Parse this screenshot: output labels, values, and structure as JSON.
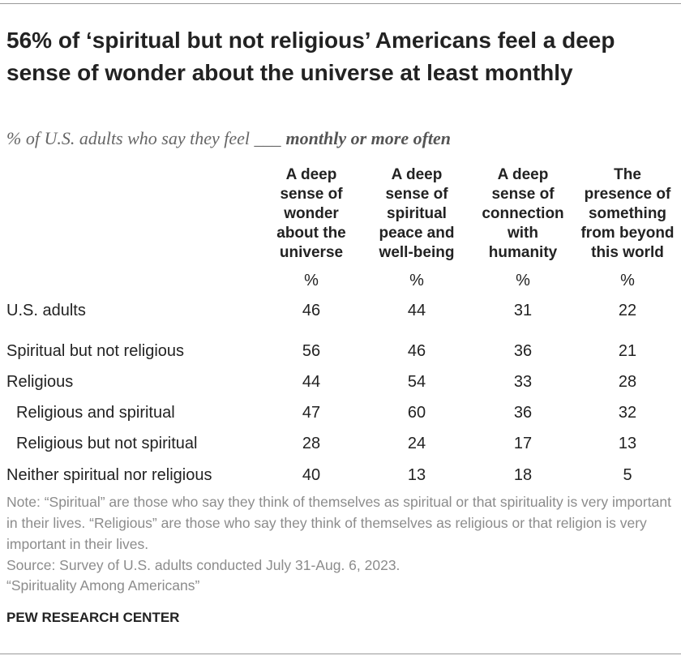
{
  "title": "56% of ‘spiritual but not religious’ Americans feel a deep sense of wonder about the universe at least monthly",
  "subtitle": {
    "lead": "% of U.S. adults who say they feel ___",
    "emphasis": "monthly or more often"
  },
  "table": {
    "columns": [
      [
        "A deep",
        "sense of",
        "wonder",
        "about the",
        "universe"
      ],
      [
        "A deep",
        "sense of",
        "spiritual",
        "peace and",
        "well-being"
      ],
      [
        "A deep",
        "sense of",
        "connection",
        "with",
        "humanity"
      ],
      [
        "The",
        "presence of",
        "something",
        "from beyond",
        "this world"
      ]
    ],
    "units": [
      "%",
      "%",
      "%",
      "%"
    ],
    "rows": [
      {
        "label": "U.S. adults",
        "values": [
          46,
          44,
          31,
          22
        ]
      },
      {
        "label": "Spiritual but not religious",
        "values": [
          56,
          46,
          36,
          21
        ]
      },
      {
        "label": "Religious",
        "values": [
          44,
          54,
          33,
          28
        ]
      },
      {
        "label": "Religious and spiritual",
        "values": [
          47,
          60,
          36,
          32
        ]
      },
      {
        "label": "Religious but not spiritual",
        "values": [
          28,
          24,
          17,
          13
        ]
      },
      {
        "label": "Neither spiritual nor religious",
        "values": [
          40,
          13,
          18,
          5
        ]
      }
    ]
  },
  "note": "Note: “Spiritual” are those who say they think of themselves as spiritual or that spirituality is very important in their lives. “Religious” are those who say they think of themselves as religious or that religion is very important in their lives.",
  "source": "Source: Survey of U.S. adults conducted July 31-Aug. 6, 2023.",
  "report": "“Spirituality Among Americans”",
  "footer": "PEW RESEARCH CENTER"
}
